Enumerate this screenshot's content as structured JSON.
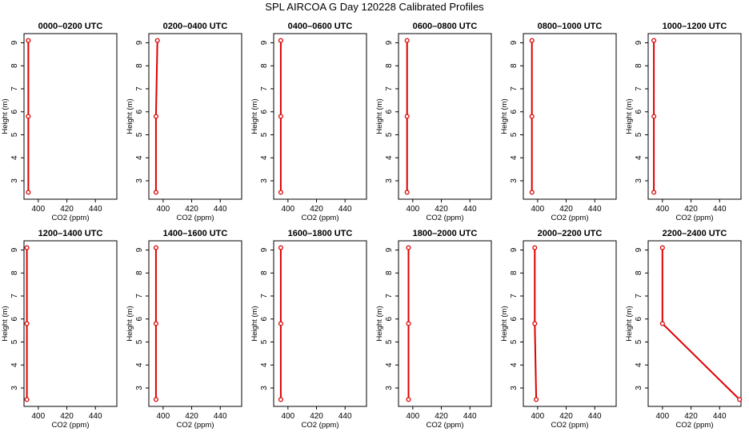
{
  "figure": {
    "title": "SPL AIRCOA G  Day 120228  Calibrated Profiles"
  },
  "colors": {
    "profile": "#dd0000",
    "axes": "#000000"
  },
  "chart_data": [
    {
      "type": "line",
      "title": "0000–0200 UTC",
      "xlabel": "CO2 (ppm)",
      "ylabel": "Height (m)",
      "xlim": [
        390,
        455
      ],
      "ylim": [
        2.2,
        9.4
      ],
      "xticks": [
        400,
        420,
        440
      ],
      "yticks": [
        3,
        4,
        5,
        6,
        7,
        8,
        9
      ],
      "points": [
        {
          "co2": 393,
          "height": 2.5
        },
        {
          "co2": 393,
          "height": 5.8
        },
        {
          "co2": 393,
          "height": 9.1
        }
      ]
    },
    {
      "type": "line",
      "title": "0200–0400 UTC",
      "xlabel": "CO2 (ppm)",
      "ylabel": "Height (m)",
      "xlim": [
        390,
        455
      ],
      "ylim": [
        2.2,
        9.4
      ],
      "xticks": [
        400,
        420,
        440
      ],
      "yticks": [
        3,
        4,
        5,
        6,
        7,
        8,
        9
      ],
      "points": [
        {
          "co2": 395,
          "height": 2.5
        },
        {
          "co2": 395,
          "height": 5.8
        },
        {
          "co2": 396,
          "height": 9.1
        }
      ]
    },
    {
      "type": "line",
      "title": "0400–0600 UTC",
      "xlabel": "CO2 (ppm)",
      "ylabel": "Height (m)",
      "xlim": [
        390,
        455
      ],
      "ylim": [
        2.2,
        9.4
      ],
      "xticks": [
        400,
        420,
        440
      ],
      "yticks": [
        3,
        4,
        5,
        6,
        7,
        8,
        9
      ],
      "points": [
        {
          "co2": 395,
          "height": 2.5
        },
        {
          "co2": 395,
          "height": 5.8
        },
        {
          "co2": 395,
          "height": 9.1
        }
      ]
    },
    {
      "type": "line",
      "title": "0600–0800 UTC",
      "xlabel": "CO2 (ppm)",
      "ylabel": "Height (m)",
      "xlim": [
        390,
        455
      ],
      "ylim": [
        2.2,
        9.4
      ],
      "xticks": [
        400,
        420,
        440
      ],
      "yticks": [
        3,
        4,
        5,
        6,
        7,
        8,
        9
      ],
      "points": [
        {
          "co2": 396,
          "height": 2.5
        },
        {
          "co2": 396,
          "height": 5.8
        },
        {
          "co2": 396,
          "height": 9.1
        }
      ]
    },
    {
      "type": "line",
      "title": "0800–1000 UTC",
      "xlabel": "CO2 (ppm)",
      "ylabel": "Height (m)",
      "xlim": [
        390,
        455
      ],
      "ylim": [
        2.2,
        9.4
      ],
      "xticks": [
        400,
        420,
        440
      ],
      "yticks": [
        3,
        4,
        5,
        6,
        7,
        8,
        9
      ],
      "points": [
        {
          "co2": 396,
          "height": 2.5
        },
        {
          "co2": 396,
          "height": 5.8
        },
        {
          "co2": 396,
          "height": 9.1
        }
      ]
    },
    {
      "type": "line",
      "title": "1000–1200 UTC",
      "xlabel": "CO2 (ppm)",
      "ylabel": "Height (m)",
      "xlim": [
        390,
        455
      ],
      "ylim": [
        2.2,
        9.4
      ],
      "xticks": [
        400,
        420,
        440
      ],
      "yticks": [
        3,
        4,
        5,
        6,
        7,
        8,
        9
      ],
      "points": [
        {
          "co2": 394,
          "height": 2.5
        },
        {
          "co2": 394,
          "height": 5.8
        },
        {
          "co2": 394,
          "height": 9.1
        }
      ]
    },
    {
      "type": "line",
      "title": "1200–1400 UTC",
      "xlabel": "CO2 (ppm)",
      "ylabel": "Height (m)",
      "xlim": [
        390,
        455
      ],
      "ylim": [
        2.2,
        9.4
      ],
      "xticks": [
        400,
        420,
        440
      ],
      "yticks": [
        3,
        4,
        5,
        6,
        7,
        8,
        9
      ],
      "points": [
        {
          "co2": 392,
          "height": 2.5
        },
        {
          "co2": 392,
          "height": 5.8
        },
        {
          "co2": 392,
          "height": 9.1
        }
      ]
    },
    {
      "type": "line",
      "title": "1400–1600 UTC",
      "xlabel": "CO2 (ppm)",
      "ylabel": "Height (m)",
      "xlim": [
        390,
        455
      ],
      "ylim": [
        2.2,
        9.4
      ],
      "xticks": [
        400,
        420,
        440
      ],
      "yticks": [
        3,
        4,
        5,
        6,
        7,
        8,
        9
      ],
      "points": [
        {
          "co2": 395,
          "height": 2.5
        },
        {
          "co2": 395,
          "height": 5.8
        },
        {
          "co2": 395,
          "height": 9.1
        }
      ]
    },
    {
      "type": "line",
      "title": "1600–1800 UTC",
      "xlabel": "CO2 (ppm)",
      "ylabel": "Height (m)",
      "xlim": [
        390,
        455
      ],
      "ylim": [
        2.2,
        9.4
      ],
      "xticks": [
        400,
        420,
        440
      ],
      "yticks": [
        3,
        4,
        5,
        6,
        7,
        8,
        9
      ],
      "points": [
        {
          "co2": 395,
          "height": 2.5
        },
        {
          "co2": 395,
          "height": 5.8
        },
        {
          "co2": 395,
          "height": 9.1
        }
      ]
    },
    {
      "type": "line",
      "title": "1800–2000 UTC",
      "xlabel": "CO2 (ppm)",
      "ylabel": "Height (m)",
      "xlim": [
        390,
        455
      ],
      "ylim": [
        2.2,
        9.4
      ],
      "xticks": [
        400,
        420,
        440
      ],
      "yticks": [
        3,
        4,
        5,
        6,
        7,
        8,
        9
      ],
      "points": [
        {
          "co2": 397,
          "height": 2.5
        },
        {
          "co2": 397,
          "height": 5.8
        },
        {
          "co2": 397,
          "height": 9.1
        }
      ]
    },
    {
      "type": "line",
      "title": "2000–2200 UTC",
      "xlabel": "CO2 (ppm)",
      "ylabel": "Height (m)",
      "xlim": [
        390,
        455
      ],
      "ylim": [
        2.2,
        9.4
      ],
      "xticks": [
        400,
        420,
        440
      ],
      "yticks": [
        3,
        4,
        5,
        6,
        7,
        8,
        9
      ],
      "points": [
        {
          "co2": 399,
          "height": 2.5
        },
        {
          "co2": 398,
          "height": 5.8
        },
        {
          "co2": 398,
          "height": 9.1
        }
      ]
    },
    {
      "type": "line",
      "title": "2200–2400 UTC",
      "xlabel": "CO2 (ppm)",
      "ylabel": "Height (m)",
      "xlim": [
        390,
        455
      ],
      "ylim": [
        2.2,
        9.4
      ],
      "xticks": [
        400,
        420,
        440
      ],
      "yticks": [
        3,
        4,
        5,
        6,
        7,
        8,
        9
      ],
      "points": [
        {
          "co2": 454,
          "height": 2.5
        },
        {
          "co2": 400,
          "height": 5.8
        },
        {
          "co2": 400,
          "height": 9.1
        }
      ]
    }
  ]
}
